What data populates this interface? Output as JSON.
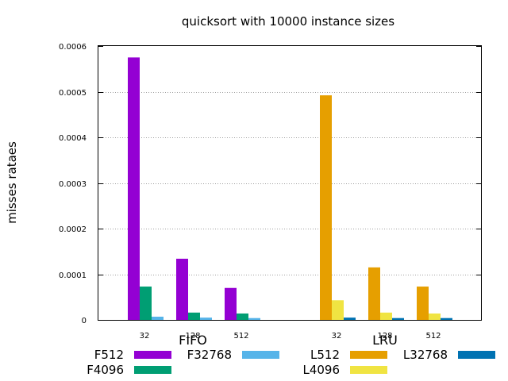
{
  "chart_data": {
    "type": "bar",
    "title": "quicksort with 10000 instance sizes",
    "xlabel": "",
    "ylabel": "misses rataes",
    "ylim": [
      0,
      0.0006
    ],
    "yticks": [
      "0",
      "0.0001",
      "0.0002",
      "0.0003",
      "0.0004",
      "0.0005",
      "0.0006"
    ],
    "grid": true,
    "legend_position": "bottom",
    "groups": [
      {
        "name": "FIFO",
        "categories": [
          "32",
          "128",
          "512"
        ],
        "series": [
          {
            "name": "F512",
            "color": "#9400d3",
            "values": [
              0.000575,
              0.000134,
              7e-05
            ]
          },
          {
            "name": "F4096",
            "color": "#009e73",
            "values": [
              7.3e-05,
              1.6e-05,
              1.4e-05
            ]
          },
          {
            "name": "F32768",
            "color": "#56b4e9",
            "values": [
              7e-06,
              5e-06,
              4e-06
            ]
          }
        ]
      },
      {
        "name": "LRU",
        "categories": [
          "32",
          "128",
          "512"
        ],
        "series": [
          {
            "name": "L512",
            "color": "#e69f00",
            "values": [
              0.000492,
              0.000115,
              7.3e-05
            ]
          },
          {
            "name": "L4096",
            "color": "#f0e442",
            "values": [
              4.3e-05,
              1.6e-05,
              1.4e-05
            ]
          },
          {
            "name": "L32768",
            "color": "#0072b2",
            "values": [
              5e-06,
              4e-06,
              4e-06
            ]
          }
        ]
      }
    ]
  }
}
